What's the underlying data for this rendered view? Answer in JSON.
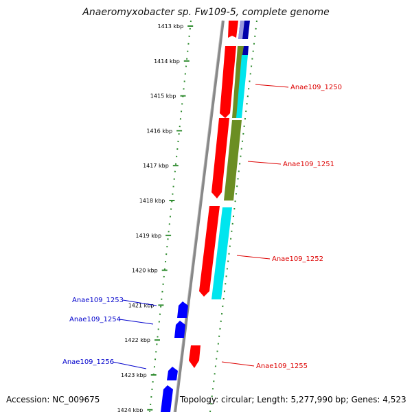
{
  "title": "Anaeromyxobacter sp. Fw109-5, complete genome",
  "accession": "Accession: NC_009675",
  "summary": "Topology: circular; Length: 5,277,990 bp; Genes: 4,523",
  "scale_ticks": [
    "1413 kbp",
    "1414 kbp",
    "1415 kbp",
    "1416 kbp",
    "1417 kbp",
    "1418 kbp",
    "1419 kbp",
    "1420 kbp",
    "1421 kbp",
    "1422 kbp",
    "1423 kbp",
    "1424 kbp"
  ],
  "gene_labels": [
    {
      "text": "Anae109_1250",
      "color": "#dd0000"
    },
    {
      "text": "Anae109_1251",
      "color": "#dd0000"
    },
    {
      "text": "Anae109_1252",
      "color": "#dd0000"
    },
    {
      "text": "Anae109_1253",
      "color": "#0000cc"
    },
    {
      "text": "Anae109_1254",
      "color": "#0000cc"
    },
    {
      "text": "Anae109_1255",
      "color": "#dd0000"
    },
    {
      "text": "Anae109_1256",
      "color": "#0000cc"
    }
  ],
  "colors": {
    "forward_gene": "#ff0000",
    "reverse_gene": "#0000ff",
    "olive_feature": "#6b8e23",
    "cyan_feature": "#00e5ee",
    "navy_feature": "#0000aa",
    "backbone": "#888888",
    "ruler": "#2e8b2e"
  }
}
